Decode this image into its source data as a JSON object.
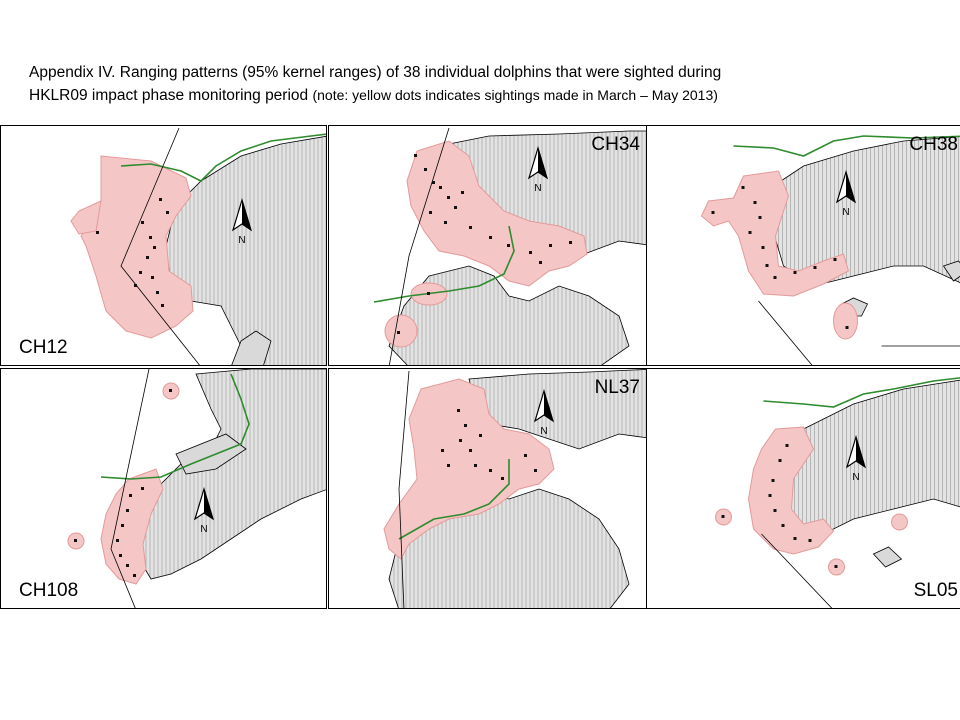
{
  "caption": {
    "line1": "Appendix IV.  Ranging patterns (95% kernel ranges) of 38 individual dolphins that were sighted during",
    "line2_main": "HKLR09 impact phase monitoring period ",
    "line2_note": "(note: yellow dots indicates sightings made in March – May 2013)"
  },
  "north_label": "N",
  "colors": {
    "kernel_fill": "#f5c6c6",
    "kernel_stroke": "#e39a9a",
    "land_fill": "#d9d9d9",
    "coast_stroke": "#000000",
    "boundary_green": "#2e8b2e",
    "dot": "#111111"
  },
  "panels": [
    {
      "id": "CH12"
    },
    {
      "id": "CH34"
    },
    {
      "id": "CH38"
    },
    {
      "id": "CH108"
    },
    {
      "id": "NL37"
    },
    {
      "id": "SL05"
    }
  ]
}
